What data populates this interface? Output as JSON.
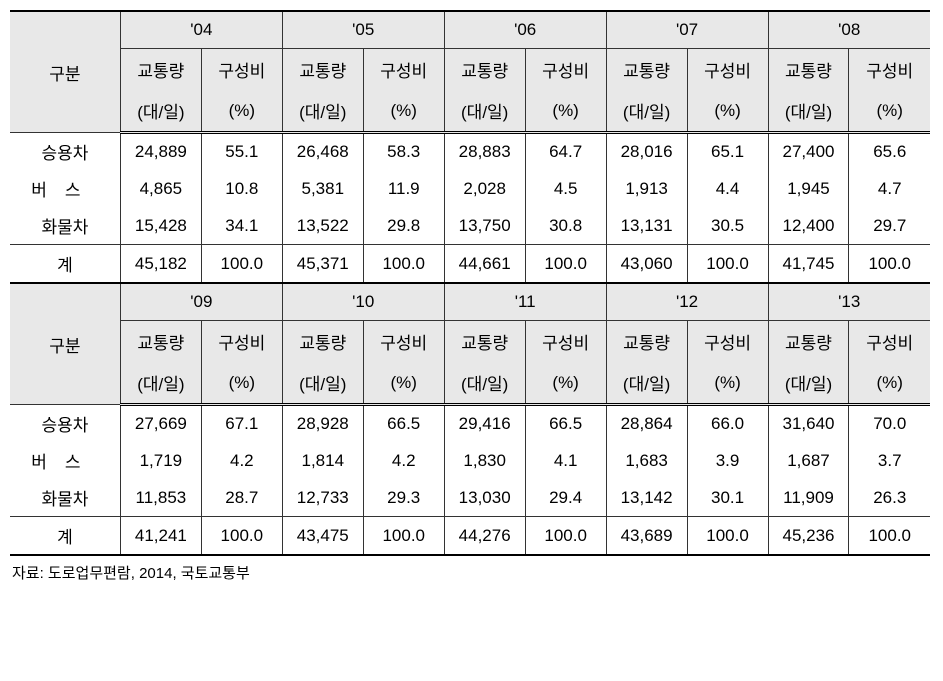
{
  "labels": {
    "category": "구분",
    "traffic": "교통량",
    "traffic_unit": "(대/일)",
    "ratio": "구성비",
    "ratio_unit": "(%)",
    "car": "승용차",
    "bus": "버스",
    "truck": "화물차",
    "total": "계"
  },
  "years_top": [
    "'04",
    "'05",
    "'06",
    "'07",
    "'08"
  ],
  "years_bottom": [
    "'09",
    "'10",
    "'11",
    "'12",
    "'13"
  ],
  "data_top": {
    "car": [
      "24,889",
      "55.1",
      "26,468",
      "58.3",
      "28,883",
      "64.7",
      "28,016",
      "65.1",
      "27,400",
      "65.6"
    ],
    "bus": [
      "4,865",
      "10.8",
      "5,381",
      "11.9",
      "2,028",
      "4.5",
      "1,913",
      "4.4",
      "1,945",
      "4.7"
    ],
    "truck": [
      "15,428",
      "34.1",
      "13,522",
      "29.8",
      "13,750",
      "30.8",
      "13,131",
      "30.5",
      "12,400",
      "29.7"
    ],
    "total": [
      "45,182",
      "100.0",
      "45,371",
      "100.0",
      "44,661",
      "100.0",
      "43,060",
      "100.0",
      "41,745",
      "100.0"
    ]
  },
  "data_bottom": {
    "car": [
      "27,669",
      "67.1",
      "28,928",
      "66.5",
      "29,416",
      "66.5",
      "28,864",
      "66.0",
      "31,640",
      "70.0"
    ],
    "bus": [
      "1,719",
      "4.2",
      "1,814",
      "4.2",
      "1,830",
      "4.1",
      "1,683",
      "3.9",
      "1,687",
      "3.7"
    ],
    "truck": [
      "11,853",
      "28.7",
      "12,733",
      "29.3",
      "13,030",
      "29.4",
      "13,142",
      "30.1",
      "11,909",
      "26.3"
    ],
    "total": [
      "41,241",
      "100.0",
      "43,475",
      "100.0",
      "44,276",
      "100.0",
      "43,689",
      "100.0",
      "45,236",
      "100.0"
    ]
  },
  "source": "자료: 도로업무편람, 2014, 국토교통부",
  "colors": {
    "header_bg": "#e8e8e8",
    "border": "#333333",
    "text": "#000000",
    "background": "#ffffff"
  },
  "fontsize": {
    "cell": 17,
    "source": 15
  }
}
